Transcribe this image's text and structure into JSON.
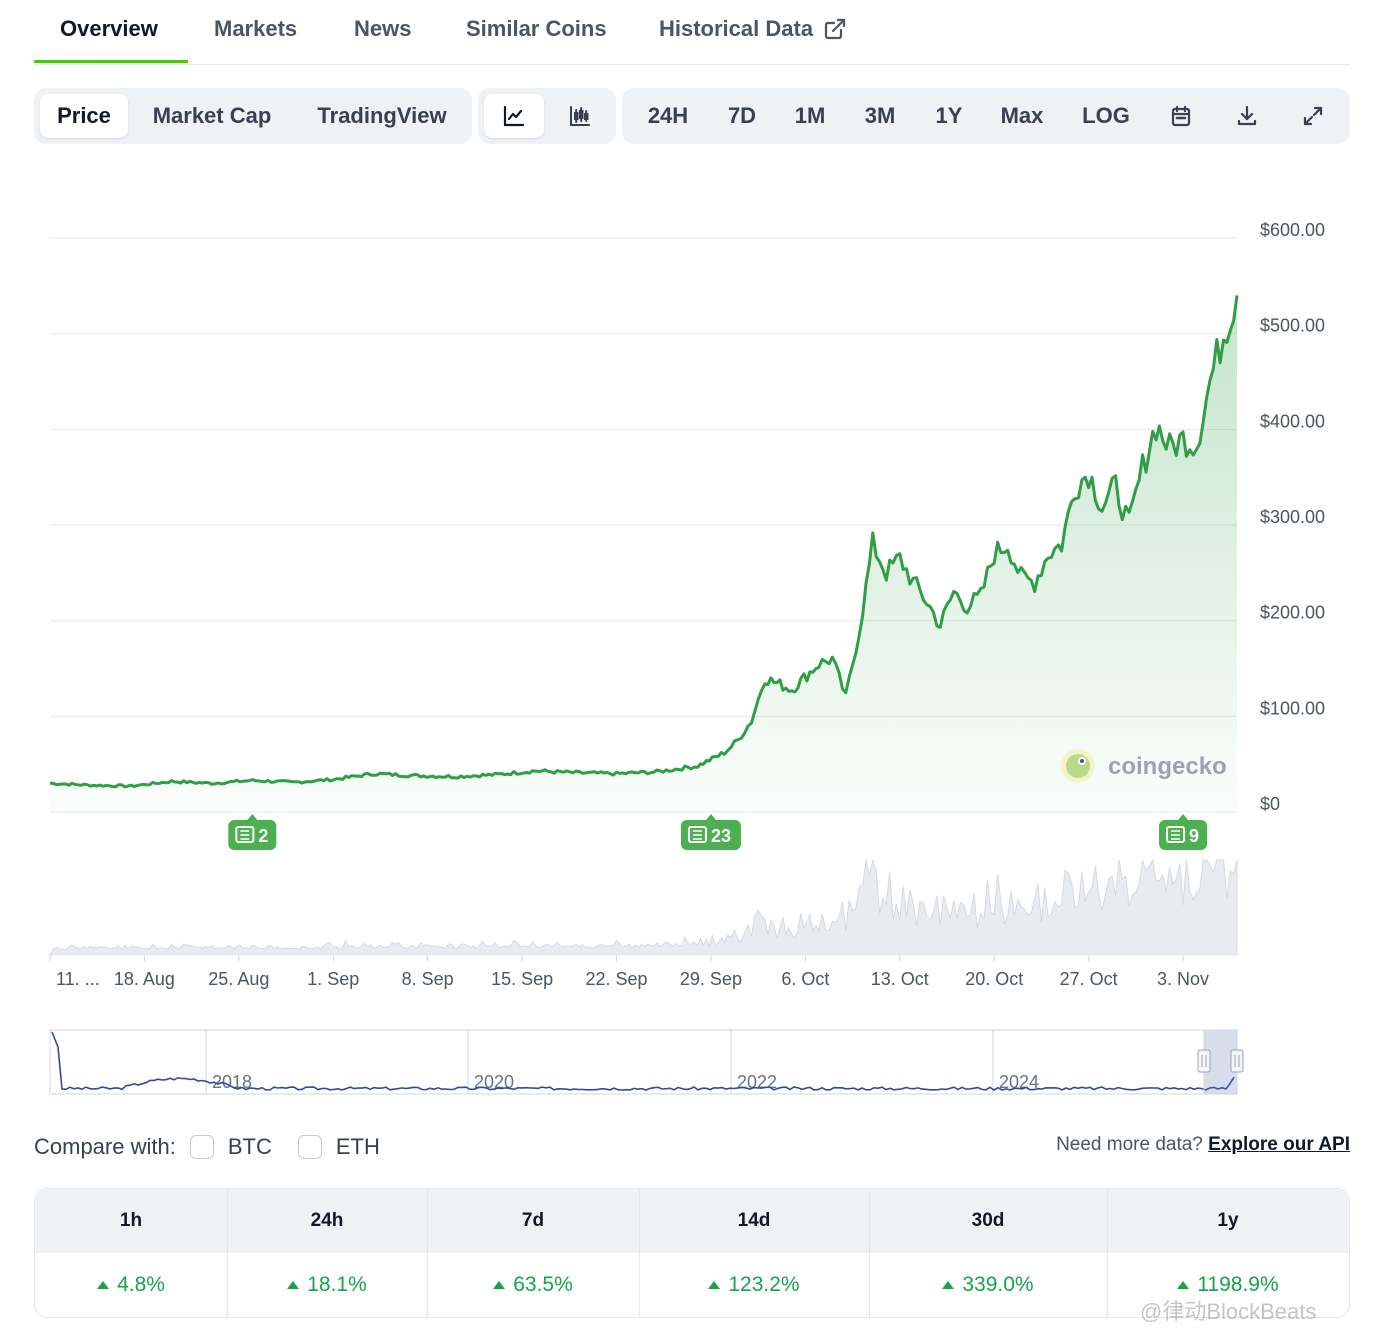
{
  "tabs": [
    "Overview",
    "Markets",
    "News",
    "Similar Coins",
    "Historical Data"
  ],
  "toolbar": {
    "views": [
      "Price",
      "Market Cap",
      "TradingView"
    ],
    "chart_modes": [
      "line-chart-icon",
      "candlestick-icon"
    ],
    "ranges": [
      "24H",
      "7D",
      "1M",
      "3M",
      "1Y",
      "Max",
      "LOG"
    ],
    "icons": [
      "calendar-icon",
      "download-icon",
      "expand-icon"
    ]
  },
  "brand": {
    "watermark": "coingecko"
  },
  "news_markers": [
    {
      "count": "2",
      "date": "2024-08-26"
    },
    {
      "count": "23",
      "date": "2024-09-29"
    },
    {
      "count": "9",
      "date": "2024-11-03"
    }
  ],
  "navigator": {
    "labels": [
      "2018",
      "2020",
      "2022",
      "2024"
    ]
  },
  "compare": {
    "label": "Compare with:",
    "options": [
      "BTC",
      "ETH"
    ]
  },
  "api": {
    "prompt": "Need more data?",
    "link": "Explore our API"
  },
  "changes": {
    "headers": [
      "1h",
      "24h",
      "7d",
      "14d",
      "30d",
      "1y"
    ],
    "values": [
      "4.8%",
      "18.1%",
      "63.5%",
      "123.2%",
      "339.0%",
      "1198.9%"
    ]
  },
  "watermark_text": "@律动BlockBeats",
  "colors": {
    "line": "#2f9e44",
    "accent": "#4bcc00",
    "up": "#16a34a",
    "volume": "#e5e7eb",
    "navigator_line": "#334a9a"
  },
  "chart_data": {
    "type": "area",
    "y_ticks": [
      "$600.00",
      "$500.00",
      "$400.00",
      "$300.00",
      "$200.00",
      "$100.00",
      "$0"
    ],
    "ylim": [
      0,
      600
    ],
    "x_ticks": [
      "11. ...",
      "18. Aug",
      "25. Aug",
      "1. Sep",
      "8. Sep",
      "15. Sep",
      "22. Sep",
      "29. Sep",
      "6. Oct",
      "13. Oct",
      "20. Oct",
      "27. Oct",
      "3. Nov"
    ],
    "xlim": [
      "2024-08-11",
      "2024-11-07"
    ],
    "series": [
      {
        "x": [
          "2024-08-11",
          "2024-08-14",
          "2024-08-17",
          "2024-08-20",
          "2024-08-23",
          "2024-08-26",
          "2024-08-29",
          "2024-09-01",
          "2024-09-04",
          "2024-09-07",
          "2024-09-10",
          "2024-09-13",
          "2024-09-16",
          "2024-09-19",
          "2024-09-22",
          "2024-09-25",
          "2024-09-28",
          "2024-09-30",
          "2024-10-01",
          "2024-10-02",
          "2024-10-03",
          "2024-10-05",
          "2024-10-07",
          "2024-10-08",
          "2024-10-09",
          "2024-10-10",
          "2024-10-11",
          "2024-10-12",
          "2024-10-13",
          "2024-10-14",
          "2024-10-15",
          "2024-10-16",
          "2024-10-17",
          "2024-10-18",
          "2024-10-19",
          "2024-10-20",
          "2024-10-21",
          "2024-10-22",
          "2024-10-23",
          "2024-10-24",
          "2024-10-25",
          "2024-10-26",
          "2024-10-27",
          "2024-10-28",
          "2024-10-29",
          "2024-10-30",
          "2024-10-31",
          "2024-11-01",
          "2024-11-02",
          "2024-11-03",
          "2024-11-04",
          "2024-11-05",
          "2024-11-06",
          "2024-11-07"
        ],
        "y": [
          30,
          28,
          27,
          32,
          30,
          33,
          31,
          34,
          40,
          38,
          37,
          39,
          43,
          41,
          40,
          42,
          48,
          62,
          75,
          95,
          140,
          128,
          155,
          160,
          120,
          190,
          280,
          250,
          265,
          240,
          220,
          195,
          230,
          215,
          225,
          270,
          280,
          245,
          240,
          270,
          280,
          340,
          355,
          320,
          340,
          300,
          360,
          405,
          380,
          390,
          385,
          450,
          500,
          540
        ]
      }
    ],
    "volume_note": "volume area shown below the price line (no axis labels)",
    "grid": true
  }
}
